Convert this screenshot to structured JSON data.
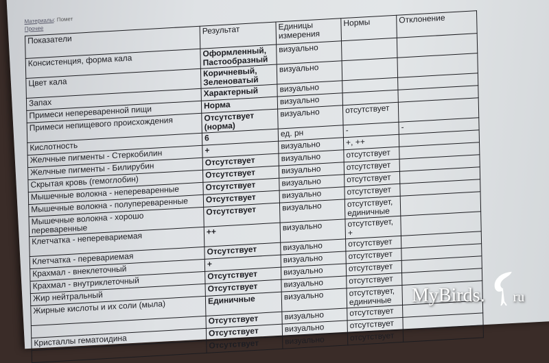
{
  "header": {
    "materials_label": "Материалы",
    "materials_value": "Помет",
    "other_label": "Прочее"
  },
  "columns": [
    "Показатели",
    "Результат",
    "Единицы измерения",
    "Нормы",
    "Отклонение"
  ],
  "rows": [
    [
      "Консистенция, форма кала",
      "Оформленный, Пастообразный",
      "визуально",
      "",
      ""
    ],
    [
      "Цвет кала",
      "Коричневый, Зеленоватый",
      "визуально",
      "",
      ""
    ],
    [
      "Запах",
      "Характерный",
      "визуально",
      "",
      ""
    ],
    [
      "Примеси непереваренной пищи",
      "Норма",
      "визуально",
      "",
      ""
    ],
    [
      "Примеси непищевого происхождения",
      "Отсутствует (норма)",
      "визуально",
      "отсутствует",
      ""
    ],
    [
      "Кислотность",
      "6",
      "ед. рн",
      "-",
      "-"
    ],
    [
      "Желчные пигменты - Стеркобилин",
      "+",
      "визуально",
      "+, ++",
      ""
    ],
    [
      "Желчные пигменты - Билирубин",
      "Отсутствует",
      "визуально",
      "отсутствует",
      ""
    ],
    [
      "Скрытая кровь (гемоглобин)",
      "Отсутствует",
      "визуально",
      "отсутствует",
      ""
    ],
    [
      "Мышечные волокна - непереваренные",
      "Отсутствует",
      "визуально",
      "отсутствует",
      ""
    ],
    [
      "Мышечные волокна - полупереваренные",
      "Отсутствует",
      "визуально",
      "отсутствует",
      ""
    ],
    [
      "Мышечные волокна - хорошо переваренные",
      "Отсутствует",
      "визуально",
      "отсутствует, единичные",
      ""
    ],
    [
      "Клетчатка - неперевариемая",
      "++",
      "визуально",
      "отсутствует, +",
      ""
    ],
    [
      "Клетчатка - перевариемая",
      "Отсутствует",
      "визуально",
      "отсутствует",
      ""
    ],
    [
      "Крахмал - внеклеточный",
      "+",
      "визуально",
      "отсутствует",
      ""
    ],
    [
      "Крахмал - внутриклеточный",
      "Отсутствует",
      "визуально",
      "отсутствует",
      ""
    ],
    [
      "Жир нейтральный",
      "Отсутствует",
      "визуально",
      "отсутствует",
      ""
    ],
    [
      "Жирные кислоты и их соли (мыла)",
      "Единичные",
      "визуально",
      "отсутствует, единичные",
      ""
    ],
    [
      "",
      "Отсутствует",
      "визуально",
      "отсутствует",
      ""
    ],
    [
      "Кристаллы гематоидина",
      "Отсутствует",
      "визуально",
      "отсутствует",
      ""
    ],
    [
      "",
      "Отсутствует",
      "визуально",
      "отсутствует",
      ""
    ]
  ],
  "watermark": {
    "brand": "MyBirds",
    "dot": ".",
    "tld": "ru",
    "icon": "parrot-logo-icon"
  }
}
